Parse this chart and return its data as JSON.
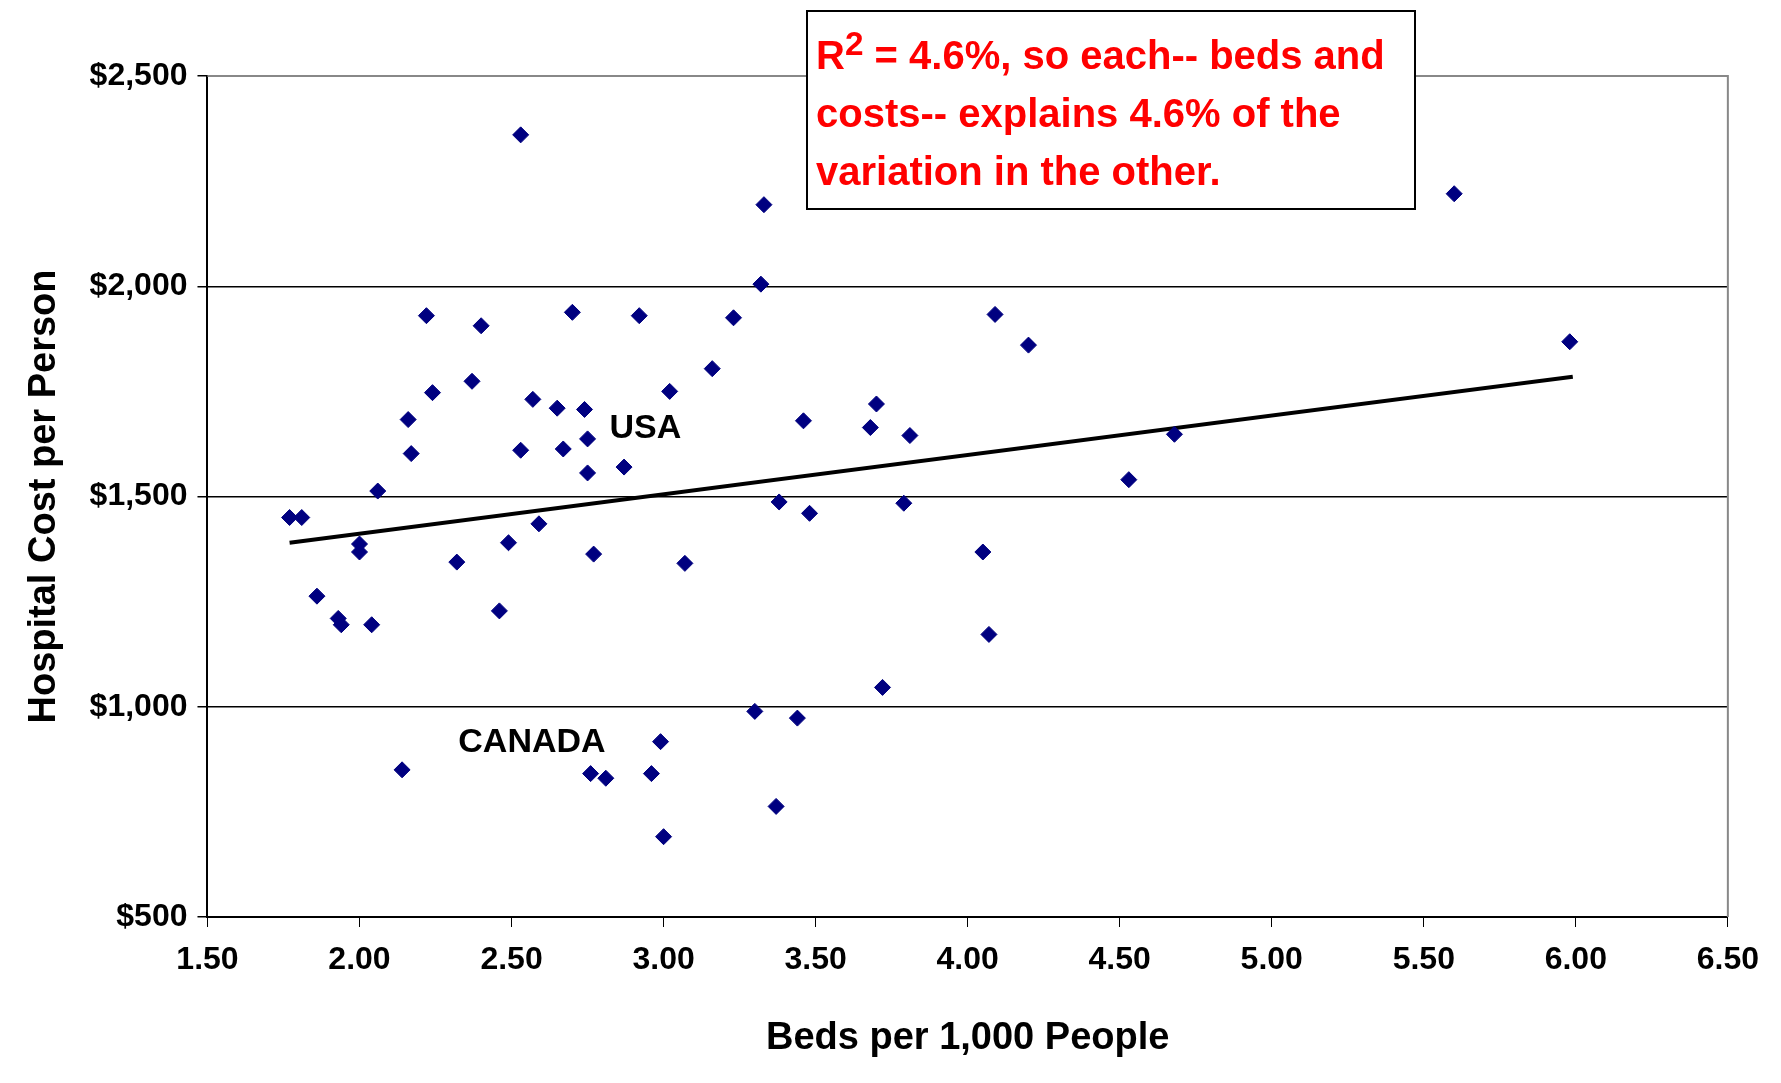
{
  "chart_data": {
    "type": "scatter",
    "xlabel": "Beds per 1,000 People",
    "ylabel": "Hospital Cost per Person",
    "legend": false,
    "grid": "y",
    "xlim": [
      1.5,
      6.5
    ],
    "xticks": [
      {
        "value": 1.5,
        "label": "1.50"
      },
      {
        "value": 2,
        "label": "2.00"
      },
      {
        "value": 2.5,
        "label": "2.50"
      },
      {
        "value": 3,
        "label": "3.00"
      },
      {
        "value": 3.5,
        "label": "3.50"
      },
      {
        "value": 4,
        "label": "4.00"
      },
      {
        "value": 4.5,
        "label": "4.50"
      },
      {
        "value": 5,
        "label": "5.00"
      },
      {
        "value": 5.5,
        "label": "5.50"
      },
      {
        "value": 6,
        "label": "6.00"
      },
      {
        "value": 6.5,
        "label": "6.50"
      }
    ],
    "ylim": [
      500,
      2500
    ],
    "yticks": [
      {
        "value": 500,
        "label": "$500"
      },
      {
        "value": 1000,
        "label": "$1,000"
      },
      {
        "value": 1500,
        "label": "$1,500"
      },
      {
        "value": 2000,
        "label": "$2,000"
      },
      {
        "value": 2500,
        "label": "$2,500"
      }
    ],
    "series": [
      {
        "marker": "diamond",
        "color": "#000080",
        "x": [
          1.77,
          1.81,
          1.86,
          1.93,
          1.94,
          2.04,
          2.0,
          2.0,
          2.06,
          2.14,
          2.16,
          2.17,
          2.22,
          2.24,
          2.32,
          2.37,
          2.4,
          2.46,
          2.49,
          2.53,
          2.53,
          2.57,
          2.59,
          2.65,
          2.67,
          2.7,
          2.74,
          2.75,
          2.75,
          2.77,
          2.76,
          2.81,
          2.87,
          2.92,
          2.96,
          2.99,
          3.0,
          3.02,
          3.07,
          3.16,
          3.23,
          3.3,
          3.32,
          3.33,
          3.37,
          3.38,
          3.44,
          3.46,
          3.48,
          3.68,
          3.7,
          3.72,
          3.79,
          3.81,
          4.05,
          4.07,
          4.09,
          4.2,
          4.53,
          4.68,
          5.6,
          5.98
        ],
        "values": [
          1450,
          1450,
          1263,
          1210,
          1195,
          1195,
          1387,
          1368,
          1513,
          850,
          1683,
          1602,
          1930,
          1747,
          1344,
          1774,
          1906,
          1228,
          1390,
          2360,
          1610,
          1731,
          1435,
          1710,
          1613,
          1938,
          1707,
          1637,
          1556,
          1363,
          841,
          830,
          1570,
          1930,
          841,
          917,
          691,
          1750,
          1341,
          1804,
          1925,
          989,
          2005,
          2194,
          763,
          1487,
          973,
          1680,
          1460,
          1664,
          1720,
          1046,
          1484,
          1645,
          1368,
          1172,
          1933,
          1860,
          1540,
          1648,
          2220,
          1868
        ]
      },
      {
        "type": "line",
        "marker": "none",
        "color": "#000000",
        "x": [
          1.77,
          5.99
        ],
        "values": [
          1390,
          1785
        ]
      }
    ],
    "annotations": [
      {
        "text": "USA",
        "x": 2.75,
        "y": 1637
      },
      {
        "text": "CANADA",
        "x": 2.76,
        "y": 841
      },
      "R$^{2}$ = 4.6%, so each-- beds and costs-- explains 4.6% of the variation in the other."
    ]
  }
}
